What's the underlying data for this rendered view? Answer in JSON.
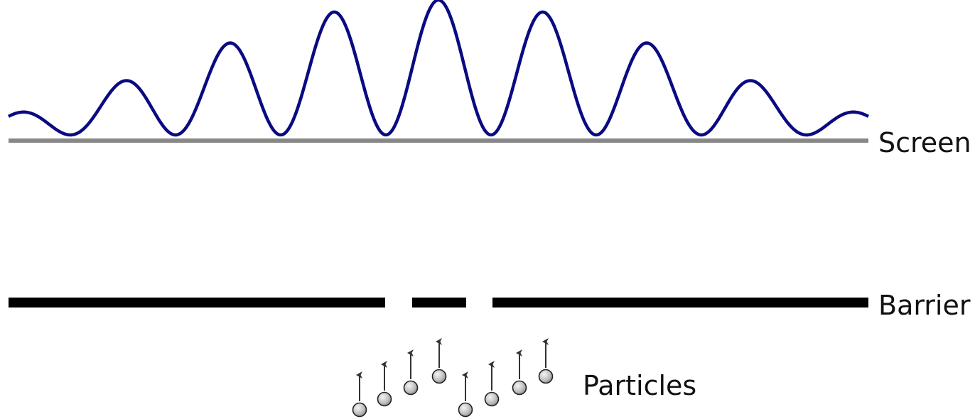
{
  "labels": {
    "screen": "Screen",
    "barrier": "Barrier",
    "particles": "Particles"
  },
  "colors": {
    "wave": "#0a0a82",
    "screen_line": "#878787",
    "barrier": "#000000",
    "particle_fill": "#bcbcbc",
    "particle_stroke": "#222222",
    "arrow": "#333333"
  },
  "icons": {
    "particle": "particle-sphere-icon",
    "velocity": "up-arrow-icon"
  }
}
